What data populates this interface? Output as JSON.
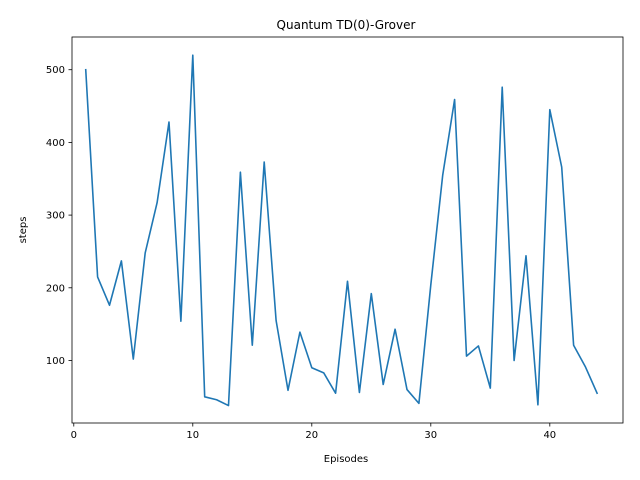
{
  "chart_data": {
    "type": "line",
    "title": "Quantum TD(0)-Grover",
    "xlabel": "Episodes",
    "ylabel": "steps",
    "xlim": [
      -0.15,
      46.15
    ],
    "ylim": [
      14,
      545
    ],
    "xticks": [
      0,
      10,
      20,
      30,
      40
    ],
    "yticks": [
      100,
      200,
      300,
      400,
      500
    ],
    "grid": false,
    "legend": "none",
    "series": [
      {
        "color": "#1f77b4",
        "x": [
          1,
          2,
          3,
          4,
          5,
          6,
          7,
          8,
          9,
          10,
          11,
          12,
          13,
          14,
          15,
          16,
          17,
          18,
          19,
          20,
          21,
          22,
          23,
          24,
          25,
          26,
          27,
          28,
          29,
          30,
          31,
          32,
          33,
          34,
          35,
          36,
          37,
          38,
          39,
          40,
          41,
          42,
          43,
          44
        ],
        "values": [
          501,
          215,
          176,
          237,
          102,
          248,
          317,
          428,
          154,
          520,
          50,
          46,
          38,
          359,
          121,
          373,
          155,
          59,
          139,
          90,
          83,
          55,
          209,
          56,
          192,
          67,
          143,
          60,
          41,
          204,
          355,
          459,
          106,
          120,
          62,
          476,
          100,
          244,
          39,
          445,
          366,
          121,
          91,
          54
        ]
      }
    ]
  }
}
